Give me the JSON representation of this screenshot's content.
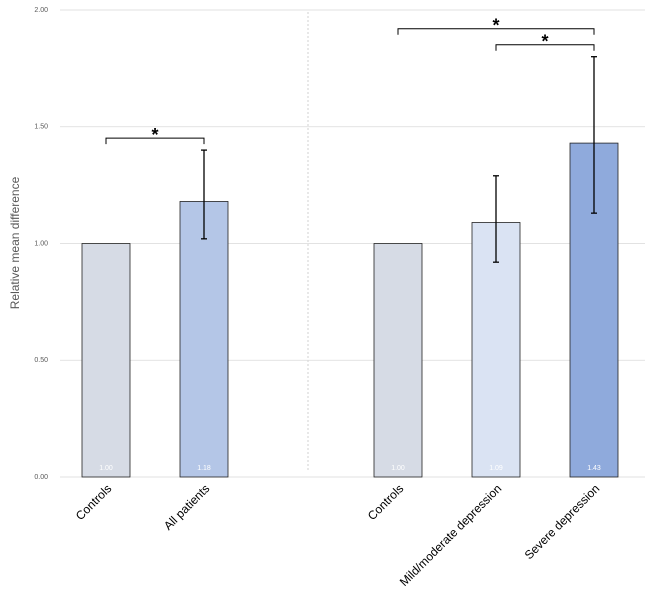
{
  "chart_data": {
    "type": "bar",
    "y_label": "Relative mean difference",
    "categories": [
      "Controls",
      "All patients",
      "Controls",
      "Mild/moderate depression",
      "Severe depression"
    ],
    "panels": [
      [
        0,
        1
      ],
      [
        2,
        3,
        4
      ]
    ],
    "values": [
      1,
      1.18,
      1,
      1.09,
      1.43
    ],
    "value_labels": [
      "1.00",
      "1.18",
      "1.00",
      "1.09",
      "1.43"
    ],
    "ci_lower": [
      null,
      1.02,
      null,
      0.92,
      1.13
    ],
    "ci_upper": [
      null,
      1.4,
      null,
      1.29,
      1.8
    ],
    "colors": [
      "#d6dbe5",
      "#b4c6e7",
      "#d6dbe5",
      "#dae3f3",
      "#8faadc"
    ],
    "significance": [
      {
        "between": [
          0,
          1
        ],
        "label": "*"
      },
      {
        "between": [
          3,
          4
        ],
        "label": "*"
      },
      {
        "between": [
          2,
          4
        ],
        "label": "*"
      }
    ],
    "ylim": [
      0,
      2
    ],
    "yticks": [
      {
        "value": 0,
        "label": "0.00"
      },
      {
        "value": 0.5,
        "label": "0.50"
      },
      {
        "value": 1,
        "label": "1.00"
      },
      {
        "value": 1.5,
        "label": "1.50"
      },
      {
        "value": 2,
        "label": "2.00"
      }
    ],
    "grid": true
  }
}
